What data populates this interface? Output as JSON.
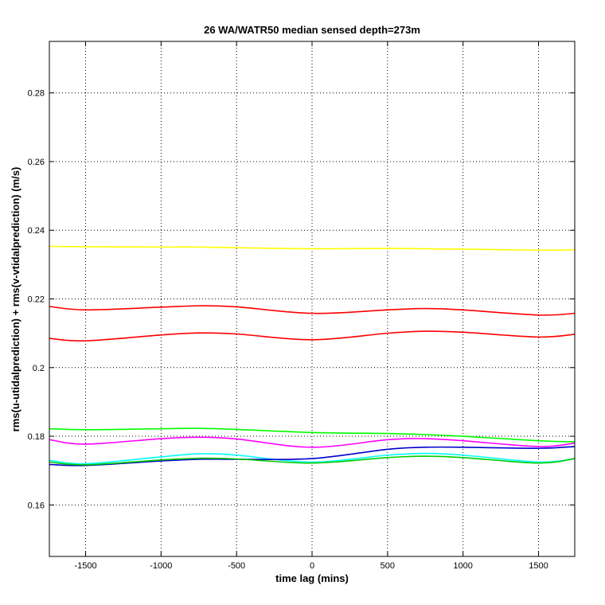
{
  "chart_data": {
    "type": "line",
    "title": "26 WA/WATR50 median sensed depth=273m",
    "xlabel": "time lag (mins)",
    "ylabel": "rms(u-utidalprediction) + rms(v-vtidalprediction) (m/s)",
    "xlim": [
      -1740,
      1740
    ],
    "ylim": [
      0.145,
      0.295
    ],
    "xticks": [
      -1500,
      -1000,
      -500,
      0,
      500,
      1000,
      1500
    ],
    "xtick_labels": [
      "-1500",
      "-1000",
      "-500",
      "0",
      "500",
      "1000",
      "1500"
    ],
    "yticks": [
      0.16,
      0.18,
      0.2,
      0.22,
      0.24,
      0.26,
      0.28
    ],
    "ytick_labels": [
      "0.16",
      "0.18",
      "0.2",
      "0.22",
      "0.24",
      "0.26",
      "0.28"
    ],
    "grid": true,
    "x": [
      -1740,
      -1500,
      -1000,
      -750,
      -500,
      0,
      500,
      750,
      1000,
      1500,
      1740
    ],
    "series": [
      {
        "color": "#ffff00",
        "values": [
          0.2353,
          0.2352,
          0.2351,
          0.2351,
          0.2349,
          0.2346,
          0.2347,
          0.2346,
          0.2345,
          0.2342,
          0.2343
        ]
      },
      {
        "color": "#ff0000",
        "values": [
          0.2178,
          0.2168,
          0.2176,
          0.218,
          0.2177,
          0.2158,
          0.2168,
          0.2172,
          0.2168,
          0.2153,
          0.2158
        ]
      },
      {
        "color": "#ff0000",
        "values": [
          0.2085,
          0.2078,
          0.2095,
          0.2101,
          0.2098,
          0.2081,
          0.21,
          0.2106,
          0.2103,
          0.2089,
          0.2097
        ]
      },
      {
        "color": "#00ff00",
        "values": [
          0.1822,
          0.1819,
          0.1822,
          0.1823,
          0.182,
          0.1811,
          0.1808,
          0.1805,
          0.18,
          0.1787,
          0.1784
        ]
      },
      {
        "color": "#ff00ff",
        "values": [
          0.179,
          0.1777,
          0.1793,
          0.1797,
          0.1792,
          0.1768,
          0.179,
          0.1793,
          0.1787,
          0.177,
          0.178
        ]
      },
      {
        "color": "#00ffff",
        "values": [
          0.173,
          0.172,
          0.174,
          0.1749,
          0.1745,
          0.1725,
          0.1745,
          0.175,
          0.1745,
          0.1725,
          0.1735
        ]
      },
      {
        "color": "#0000cc",
        "values": [
          0.1718,
          0.1715,
          0.1728,
          0.1733,
          0.1733,
          0.1735,
          0.1762,
          0.1768,
          0.1768,
          0.1765,
          0.177
        ]
      },
      {
        "color": "#00cc00",
        "values": [
          0.1725,
          0.1717,
          0.1731,
          0.1736,
          0.1734,
          0.1722,
          0.1738,
          0.1742,
          0.1738,
          0.1722,
          0.1735
        ]
      }
    ]
  }
}
